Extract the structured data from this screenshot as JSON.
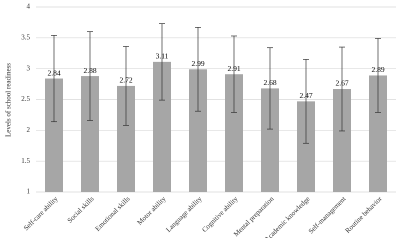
{
  "chart_data": {
    "type": "bar",
    "y_label": "Levels of school readiness",
    "categories": [
      "Self-care ability",
      "Social skills",
      "Emotional skills",
      "Motor ability",
      "Language ability",
      "Cognitive ability",
      "Mental preparation",
      "Academic knowledge",
      "Self-management",
      "Routine behavior"
    ],
    "values": [
      2.84,
      2.88,
      2.72,
      3.11,
      2.99,
      2.91,
      2.68,
      2.47,
      2.67,
      2.89
    ],
    "errors": [
      0.7,
      0.72,
      0.64,
      0.62,
      0.68,
      0.62,
      0.66,
      0.68,
      0.68,
      0.6
    ],
    "color": "#a6a6a6",
    "error_color": "#333333",
    "ylim": [
      1,
      4
    ],
    "yticks": [
      1,
      1.5,
      2,
      2.5,
      3,
      3.5,
      4
    ],
    "grid": true
  }
}
